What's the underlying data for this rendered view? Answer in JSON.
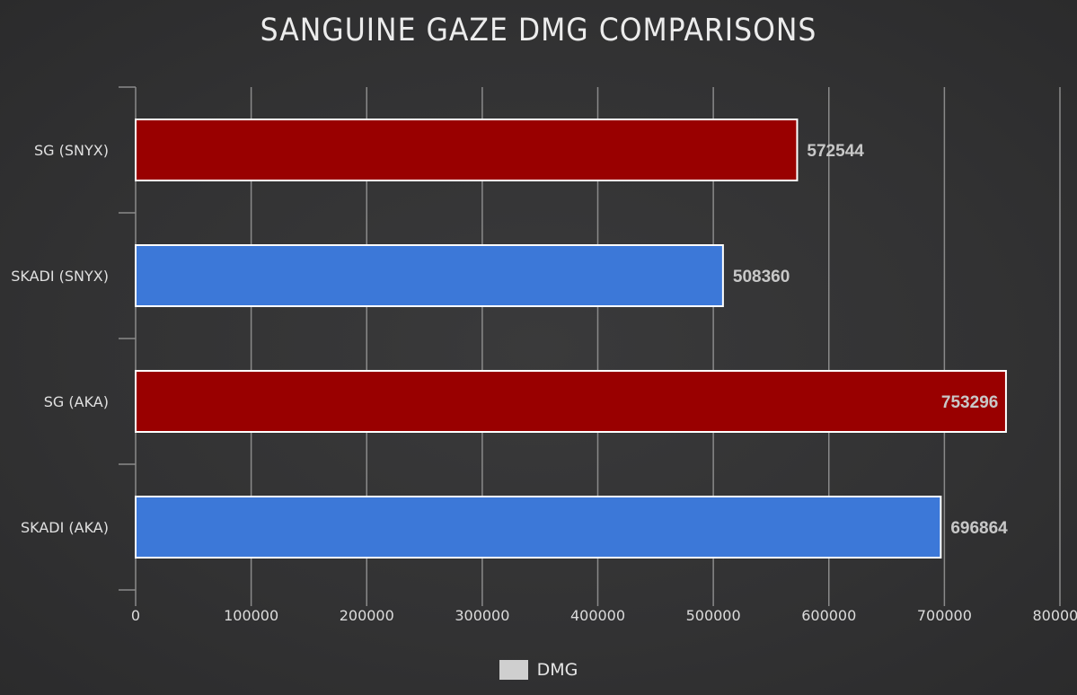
{
  "chart_data": {
    "type": "bar",
    "orientation": "horizontal",
    "title": "SANGUINE GAZE DMG COMPARISONS",
    "categories": [
      "SG (SNYX)",
      "SKADI (SNYX)",
      "SG (AKA)",
      "SKADI (AKA)"
    ],
    "values": [
      572544,
      508360,
      753296,
      696864
    ],
    "value_labels": [
      "572544",
      "508360",
      "753296",
      "696864"
    ],
    "bar_colors": [
      "#990000",
      "#3c78d8",
      "#990000",
      "#3c78d8"
    ],
    "xlim": [
      0,
      800000
    ],
    "x_ticks": [
      0,
      100000,
      200000,
      300000,
      400000,
      500000,
      600000,
      700000,
      800000
    ],
    "x_tick_labels": [
      "0",
      "100000",
      "200000",
      "300000",
      "400000",
      "500000",
      "600000",
      "700000",
      "800000"
    ],
    "grid": true,
    "legend": {
      "position": "bottom",
      "entries": [
        {
          "name": "DMG",
          "color": "#cccccc"
        }
      ]
    },
    "background_color": "#333334"
  }
}
